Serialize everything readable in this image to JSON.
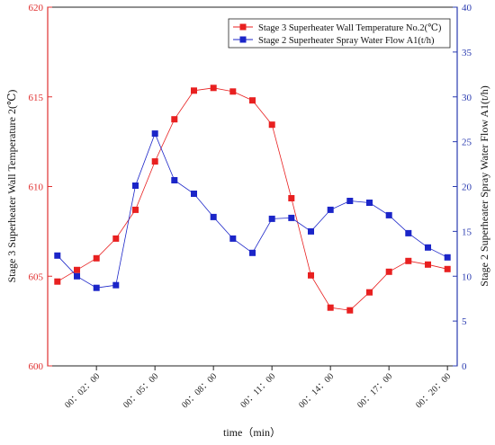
{
  "chart_data": {
    "type": "line",
    "xlabel": "time（min）",
    "x_ticks": [
      "00：02：00",
      "00：05：00",
      "00：08：00",
      "00：11：00",
      "00：14：00",
      "00：17：00",
      "00：20：00"
    ],
    "x_tick_minutes": [
      2,
      5,
      8,
      11,
      14,
      17,
      20
    ],
    "xlim": [
      -0.5,
      20.5
    ],
    "x_minutes": [
      0,
      1,
      2,
      3,
      4,
      5,
      6,
      7,
      8,
      9,
      10,
      11,
      12,
      13,
      14,
      15,
      16,
      17,
      18,
      19,
      20
    ],
    "y_left": {
      "label": "Stage 3 Superheater Wall Temperature 2(℃)",
      "ylim": [
        600,
        620
      ],
      "ticks": [
        600,
        605,
        610,
        615,
        620
      ],
      "color": "#e03030"
    },
    "y_right": {
      "label": "Stage 2 Superheater Spray Water Flow A1(t/h)",
      "ylim": [
        0,
        40
      ],
      "ticks": [
        0,
        5,
        10,
        15,
        20,
        25,
        30,
        35,
        40
      ],
      "color": "#2a3bb0"
    },
    "series": [
      {
        "name": "Stage 3 Superheater Wall Temperature No.2(℃)",
        "axis": "left",
        "color": "#e82020",
        "marker": "square",
        "values": [
          604.7,
          605.35,
          606.0,
          607.1,
          608.7,
          611.4,
          613.75,
          615.35,
          615.5,
          615.3,
          614.8,
          613.45,
          609.35,
          605.05,
          603.25,
          603.1,
          604.1,
          605.25,
          605.85,
          605.65,
          605.4
        ]
      },
      {
        "name": "Stage 2 Superheater Spray Water Flow A1(t/h)",
        "axis": "right",
        "color": "#1b25c8",
        "marker": "square",
        "values": [
          12.3,
          10.0,
          8.7,
          9.0,
          20.1,
          25.9,
          20.7,
          19.2,
          16.6,
          14.2,
          12.6,
          16.4,
          16.5,
          15.0,
          17.4,
          18.4,
          18.2,
          16.8,
          14.8,
          13.2,
          12.1
        ]
      }
    ],
    "legend_position": "top-right",
    "grid": false
  }
}
